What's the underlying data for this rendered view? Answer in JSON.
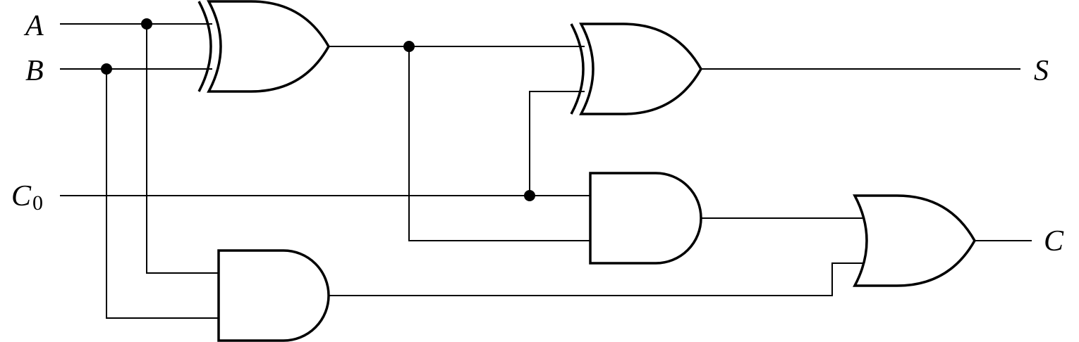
{
  "diagram": {
    "type": "logic-circuit",
    "inputs": [
      {
        "id": "A",
        "label": "A"
      },
      {
        "id": "B",
        "label": "B"
      },
      {
        "id": "C0",
        "label": "C",
        "subscript": "0"
      }
    ],
    "outputs": [
      {
        "id": "S",
        "label": "S"
      },
      {
        "id": "C",
        "label": "C"
      }
    ],
    "gates": [
      {
        "id": "xor1",
        "kind": "XOR",
        "inputs": [
          "A",
          "B"
        ]
      },
      {
        "id": "xor2",
        "kind": "XOR",
        "inputs": [
          "xor1",
          "C0"
        ],
        "output": "S"
      },
      {
        "id": "and1",
        "kind": "AND",
        "inputs": [
          "C0",
          "xor1"
        ]
      },
      {
        "id": "and2",
        "kind": "AND",
        "inputs": [
          "A",
          "B"
        ]
      },
      {
        "id": "or1",
        "kind": "OR",
        "inputs": [
          "and1",
          "and2"
        ],
        "output": "C"
      }
    ],
    "colors": {
      "stroke": "#000000",
      "background": "#ffffff"
    }
  }
}
